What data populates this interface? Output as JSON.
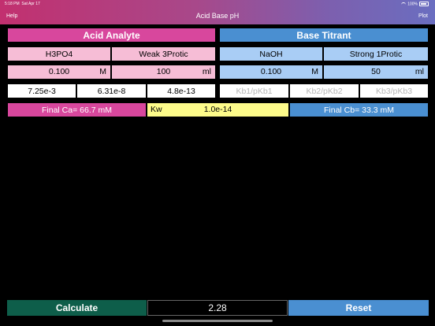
{
  "status": {
    "time": "5:18 PM",
    "date": "Sat Apr 17",
    "battery": "100%"
  },
  "nav": {
    "help": "Help",
    "title": "Acid Base pH",
    "plot": "Plot"
  },
  "acid": {
    "header": "Acid Analyte",
    "name": "H3PO4",
    "type": "Weak 3Protic",
    "conc": "0.100",
    "conc_unit": "M",
    "volume": "100",
    "volume_unit": "ml",
    "ka1": "7.25e-3",
    "ka2": "6.31e-8",
    "ka3": "4.8e-13",
    "final": "Final Ca=  66.7 mM"
  },
  "base": {
    "header": "Base Titrant",
    "name": "NaOH",
    "type": "Strong 1Protic",
    "conc": "0.100",
    "conc_unit": "M",
    "volume": "50",
    "volume_unit": "ml",
    "kb1": "Kb1/pKb1",
    "kb2": "Kb2/pKb2",
    "kb3": "Kb3/pKb3",
    "final": "Final Cb=  33.3 mM"
  },
  "kw": {
    "label": "Kw",
    "value": "1.0e-14"
  },
  "bottom": {
    "calculate": "Calculate",
    "result": "2.28",
    "reset": "Reset"
  }
}
